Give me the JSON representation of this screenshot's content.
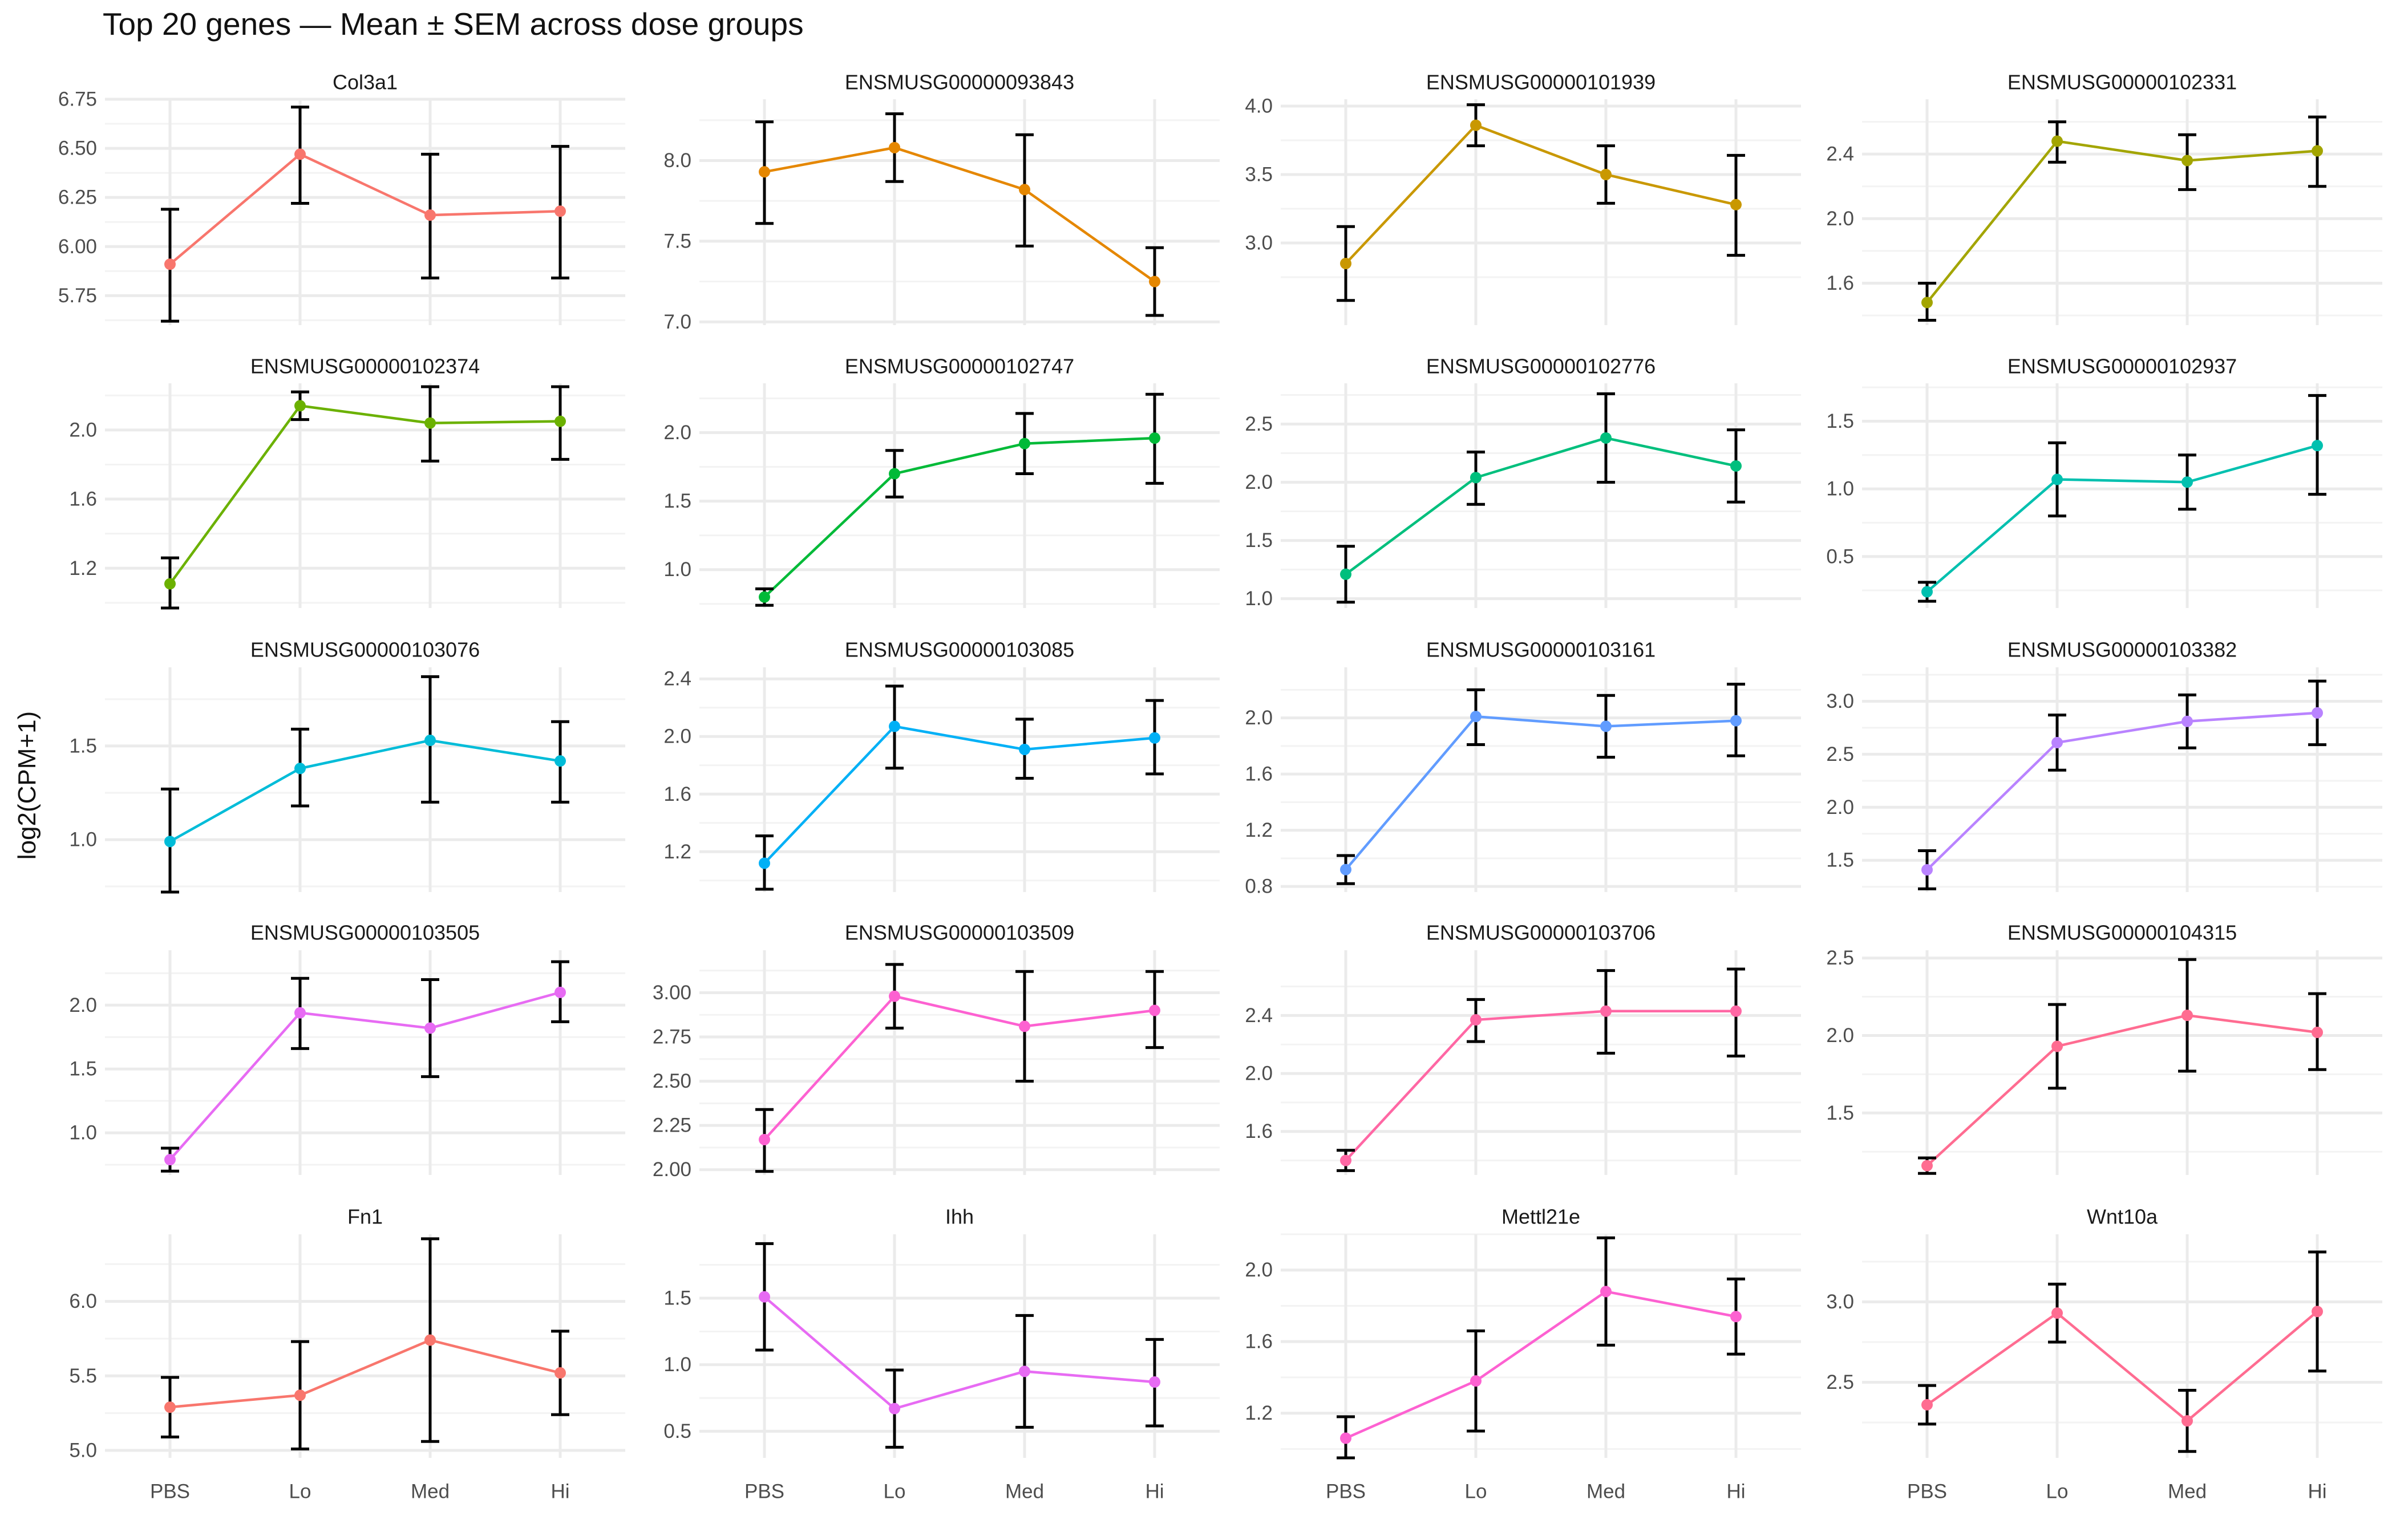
{
  "chart_data": {
    "type": "line",
    "title": "Top 20 genes — Mean ± SEM across dose groups",
    "ylabel": "log2(CPM+1)",
    "categories": [
      "PBS",
      "Lo",
      "Med",
      "Hi"
    ],
    "panels": [
      {
        "name": "Col3a1",
        "color": "#F8766D",
        "ylim": [
          5.6,
          6.75
        ],
        "yticks": [
          5.75,
          6.0,
          6.25,
          6.5,
          6.75
        ],
        "tick_labels": [
          "5.75",
          "6.00",
          "6.25",
          "6.50",
          "6.75"
        ],
        "mean": [
          5.91,
          6.47,
          6.16,
          6.18
        ],
        "lower": [
          5.62,
          6.22,
          5.84,
          5.84
        ],
        "upper": [
          6.19,
          6.71,
          6.47,
          6.51
        ]
      },
      {
        "name": "ENSMUSG00000093843",
        "color": "#E58700",
        "ylim": [
          6.98,
          8.38
        ],
        "yticks": [
          7.0,
          7.5,
          8.0
        ],
        "tick_labels": [
          "7.0",
          "7.5",
          "8.0"
        ],
        "mean": [
          7.93,
          8.08,
          7.82,
          7.25
        ],
        "lower": [
          7.61,
          7.87,
          7.47,
          7.04
        ],
        "upper": [
          8.24,
          8.29,
          8.16,
          7.46
        ]
      },
      {
        "name": "ENSMUSG00000101939",
        "color": "#C99800",
        "ylim": [
          2.4,
          4.05
        ],
        "yticks": [
          3.0,
          3.5,
          4.0
        ],
        "tick_labels": [
          "3.0",
          "3.5",
          "4.0"
        ],
        "mean": [
          2.85,
          3.86,
          3.5,
          3.28
        ],
        "lower": [
          2.58,
          3.71,
          3.29,
          2.91
        ],
        "upper": [
          3.12,
          4.01,
          3.71,
          3.64
        ]
      },
      {
        "name": "ENSMUSG00000102331",
        "color": "#A3A500",
        "ylim": [
          1.34,
          2.74
        ],
        "yticks": [
          1.6,
          2.0,
          2.4
        ],
        "tick_labels": [
          "1.6",
          "2.0",
          "2.4"
        ],
        "mean": [
          1.48,
          2.48,
          2.36,
          2.42
        ],
        "lower": [
          1.37,
          2.35,
          2.18,
          2.2
        ],
        "upper": [
          1.6,
          2.6,
          2.52,
          2.63
        ]
      },
      {
        "name": "ENSMUSG00000102374",
        "color": "#6BB100",
        "ylim": [
          0.97,
          2.27
        ],
        "yticks": [
          1.2,
          1.6,
          2.0
        ],
        "tick_labels": [
          "1.2",
          "1.6",
          "2.0"
        ],
        "mean": [
          1.11,
          2.14,
          2.04,
          2.05
        ],
        "lower": [
          0.97,
          2.06,
          1.82,
          1.83
        ],
        "upper": [
          1.26,
          2.22,
          2.25,
          2.25
        ]
      },
      {
        "name": "ENSMUSG00000102747",
        "color": "#00BA38",
        "ylim": [
          0.72,
          2.36
        ],
        "yticks": [
          1.0,
          1.5,
          2.0
        ],
        "tick_labels": [
          "1.0",
          "1.5",
          "2.0"
        ],
        "mean": [
          0.8,
          1.7,
          1.92,
          1.96
        ],
        "lower": [
          0.74,
          1.53,
          1.7,
          1.63
        ],
        "upper": [
          0.86,
          1.87,
          2.14,
          2.28
        ]
      },
      {
        "name": "ENSMUSG00000102776",
        "color": "#00BF7D",
        "ylim": [
          0.92,
          2.85
        ],
        "yticks": [
          1.0,
          1.5,
          2.0,
          2.5
        ],
        "tick_labels": [
          "1.0",
          "1.5",
          "2.0",
          "2.5"
        ],
        "mean": [
          1.21,
          2.04,
          2.38,
          2.14
        ],
        "lower": [
          0.97,
          1.81,
          2.0,
          1.83
        ],
        "upper": [
          1.45,
          2.26,
          2.76,
          2.45
        ]
      },
      {
        "name": "ENSMUSG00000102937",
        "color": "#00C0AF",
        "ylim": [
          0.12,
          1.78
        ],
        "yticks": [
          0.5,
          1.0,
          1.5
        ],
        "tick_labels": [
          "0.5",
          "1.0",
          "1.5"
        ],
        "mean": [
          0.24,
          1.07,
          1.05,
          1.32
        ],
        "lower": [
          0.17,
          0.8,
          0.85,
          0.96
        ],
        "upper": [
          0.31,
          1.34,
          1.25,
          1.69
        ]
      },
      {
        "name": "ENSMUSG00000103076",
        "color": "#00BCD8",
        "ylim": [
          0.72,
          1.92
        ],
        "yticks": [
          1.0,
          1.5
        ],
        "tick_labels": [
          "1.0",
          "1.5"
        ],
        "mean": [
          0.99,
          1.38,
          1.53,
          1.42
        ],
        "lower": [
          0.72,
          1.18,
          1.2,
          1.2
        ],
        "upper": [
          1.27,
          1.59,
          1.87,
          1.63
        ]
      },
      {
        "name": "ENSMUSG00000103085",
        "color": "#00B0F6",
        "ylim": [
          0.92,
          2.48
        ],
        "yticks": [
          1.2,
          1.6,
          2.0,
          2.4
        ],
        "tick_labels": [
          "1.2",
          "1.6",
          "2.0",
          "2.4"
        ],
        "mean": [
          1.12,
          2.07,
          1.91,
          1.99
        ],
        "lower": [
          0.94,
          1.78,
          1.71,
          1.74
        ],
        "upper": [
          1.31,
          2.35,
          2.12,
          2.25
        ]
      },
      {
        "name": "ENSMUSG00000103161",
        "color": "#619CFF",
        "ylim": [
          0.76,
          2.36
        ],
        "yticks": [
          0.8,
          1.2,
          1.6,
          2.0
        ],
        "tick_labels": [
          "0.8",
          "1.2",
          "1.6",
          "2.0"
        ],
        "mean": [
          0.92,
          2.01,
          1.94,
          1.98
        ],
        "lower": [
          0.82,
          1.81,
          1.72,
          1.73
        ],
        "upper": [
          1.02,
          2.2,
          2.16,
          2.24
        ]
      },
      {
        "name": "ENSMUSG00000103382",
        "color": "#B983FF",
        "ylim": [
          1.2,
          3.32
        ],
        "yticks": [
          1.5,
          2.0,
          2.5,
          3.0
        ],
        "tick_labels": [
          "1.5",
          "2.0",
          "2.5",
          "3.0"
        ],
        "mean": [
          1.41,
          2.61,
          2.81,
          2.89
        ],
        "lower": [
          1.23,
          2.35,
          2.56,
          2.59
        ],
        "upper": [
          1.59,
          2.87,
          3.06,
          3.19
        ]
      },
      {
        "name": "ENSMUSG00000103505",
        "color": "#E76BF3",
        "ylim": [
          0.67,
          2.43
        ],
        "yticks": [
          1.0,
          1.5,
          2.0
        ],
        "tick_labels": [
          "1.0",
          "1.5",
          "2.0"
        ],
        "mean": [
          0.79,
          1.94,
          1.82,
          2.1
        ],
        "lower": [
          0.7,
          1.66,
          1.44,
          1.87
        ],
        "upper": [
          0.88,
          2.21,
          2.2,
          2.34
        ]
      },
      {
        "name": "ENSMUSG00000103509",
        "color": "#FD61D1",
        "ylim": [
          1.97,
          3.24
        ],
        "yticks": [
          2.0,
          2.25,
          2.5,
          2.75,
          3.0
        ],
        "tick_labels": [
          "2.00",
          "2.25",
          "2.50",
          "2.75",
          "3.00"
        ],
        "mean": [
          2.17,
          2.98,
          2.81,
          2.9
        ],
        "lower": [
          1.99,
          2.8,
          2.5,
          2.69
        ],
        "upper": [
          2.34,
          3.16,
          3.12,
          3.12
        ]
      },
      {
        "name": "ENSMUSG00000103706",
        "color": "#FF67A4",
        "ylim": [
          1.3,
          2.85
        ],
        "yticks": [
          1.6,
          2.0,
          2.4
        ],
        "tick_labels": [
          "1.6",
          "2.0",
          "2.4"
        ],
        "mean": [
          1.4,
          2.37,
          2.43,
          2.43
        ],
        "lower": [
          1.33,
          2.22,
          2.14,
          2.12
        ],
        "upper": [
          1.47,
          2.51,
          2.71,
          2.72
        ]
      },
      {
        "name": "ENSMUSG00000104315",
        "color": "#FF6C91",
        "ylim": [
          1.1,
          2.55
        ],
        "yticks": [
          1.5,
          2.0,
          2.5
        ],
        "tick_labels": [
          "1.5",
          "2.0",
          "2.5"
        ],
        "mean": [
          1.16,
          1.93,
          2.13,
          2.02
        ],
        "lower": [
          1.11,
          1.66,
          1.77,
          1.78
        ],
        "upper": [
          1.21,
          2.2,
          2.49,
          2.27
        ]
      },
      {
        "name": "Fn1",
        "color": "#F8766D",
        "ylim": [
          4.95,
          6.45
        ],
        "yticks": [
          5.0,
          5.5,
          6.0
        ],
        "tick_labels": [
          "5.0",
          "5.5",
          "6.0"
        ],
        "mean": [
          5.29,
          5.37,
          5.74,
          5.52
        ],
        "lower": [
          5.09,
          5.01,
          5.06,
          5.24
        ],
        "upper": [
          5.49,
          5.73,
          6.42,
          5.8
        ]
      },
      {
        "name": "Ihh",
        "color": "#E76BF3",
        "ylim": [
          0.3,
          1.98
        ],
        "yticks": [
          0.5,
          1.0,
          1.5
        ],
        "tick_labels": [
          "0.5",
          "1.0",
          "1.5"
        ],
        "mean": [
          1.51,
          0.67,
          0.95,
          0.87
        ],
        "lower": [
          1.11,
          0.38,
          0.53,
          0.54
        ],
        "upper": [
          1.91,
          0.96,
          1.37,
          1.19
        ]
      },
      {
        "name": "Mettl21e",
        "color": "#FD61D1",
        "ylim": [
          0.95,
          2.2
        ],
        "yticks": [
          1.2,
          1.6,
          2.0
        ],
        "tick_labels": [
          "1.2",
          "1.6",
          "2.0"
        ],
        "mean": [
          1.06,
          1.38,
          1.88,
          1.74
        ],
        "lower": [
          0.95,
          1.1,
          1.58,
          1.53
        ],
        "upper": [
          1.18,
          1.66,
          2.18,
          1.95
        ]
      },
      {
        "name": "Wnt10a",
        "color": "#FF6C91",
        "ylim": [
          2.03,
          3.42
        ],
        "yticks": [
          2.5,
          3.0
        ],
        "tick_labels": [
          "2.5",
          "3.0"
        ],
        "mean": [
          2.36,
          2.93,
          2.26,
          2.94
        ],
        "lower": [
          2.24,
          2.75,
          2.07,
          2.57
        ],
        "upper": [
          2.48,
          3.11,
          2.45,
          3.31
        ]
      }
    ]
  }
}
